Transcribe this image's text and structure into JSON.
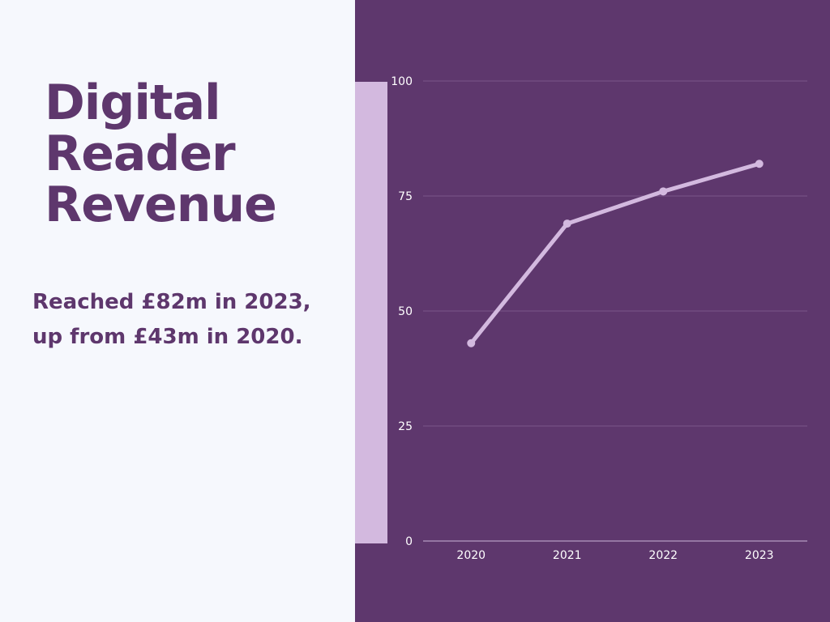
{
  "headline": {
    "title_lines": [
      "Digital",
      "Reader",
      "Revenue"
    ],
    "subtitle_lines": [
      "Reached £82m in 2023,",
      "up from £43m in 2020."
    ]
  },
  "colors": {
    "panel_bg": "#5e376d",
    "page_bg": "#f6f8fd",
    "title": "#5e376d",
    "accent_bar": "#d3b9df",
    "line": "#d3b9df",
    "grid": "#7a5589",
    "axis_text": "#ffffff"
  },
  "chart_data": {
    "type": "line",
    "title": "",
    "xlabel": "",
    "ylabel": "",
    "categories": [
      "2020",
      "2021",
      "2022",
      "2023"
    ],
    "series": [
      {
        "values": [
          43,
          69,
          76,
          82
        ]
      }
    ],
    "ylim": [
      0,
      100
    ],
    "yticks": [
      0,
      25,
      50,
      75,
      100
    ],
    "grid": true,
    "legend": "none"
  }
}
